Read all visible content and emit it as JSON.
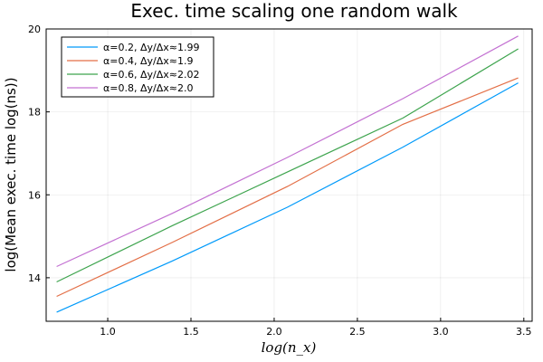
{
  "chart_data": {
    "type": "line",
    "title": "Exec. time scaling one random walk",
    "xlabel": "log(n_x)",
    "ylabel": "log(Mean exec. time log(ns))",
    "xlim": [
      0.63,
      3.55
    ],
    "ylim": [
      12.95,
      20.0
    ],
    "xticks": [
      1.0,
      1.5,
      2.0,
      2.5,
      3.0,
      3.5
    ],
    "yticks": [
      14,
      16,
      18,
      20
    ],
    "grid": true,
    "legend_position": "top-left",
    "x": [
      0.693,
      1.386,
      2.079,
      2.773,
      3.466
    ],
    "series": [
      {
        "name": "α=0.2, Δy/Δx≈1.99",
        "color": "#009AFA",
        "values": [
          13.17,
          14.4,
          15.7,
          17.15,
          18.7
        ]
      },
      {
        "name": "α=0.4, Δy/Δx≈1.9",
        "color": "#E36F47",
        "values": [
          13.55,
          14.85,
          16.2,
          17.7,
          18.82
        ]
      },
      {
        "name": "α=0.6, Δy/Δx≈2.02",
        "color": "#3EA44E",
        "values": [
          13.9,
          15.25,
          16.55,
          17.85,
          19.52
        ]
      },
      {
        "name": "α=0.8, Δy/Δx≈2.0",
        "color": "#C371D2",
        "values": [
          14.27,
          15.55,
          16.9,
          18.32,
          19.83
        ]
      }
    ]
  }
}
